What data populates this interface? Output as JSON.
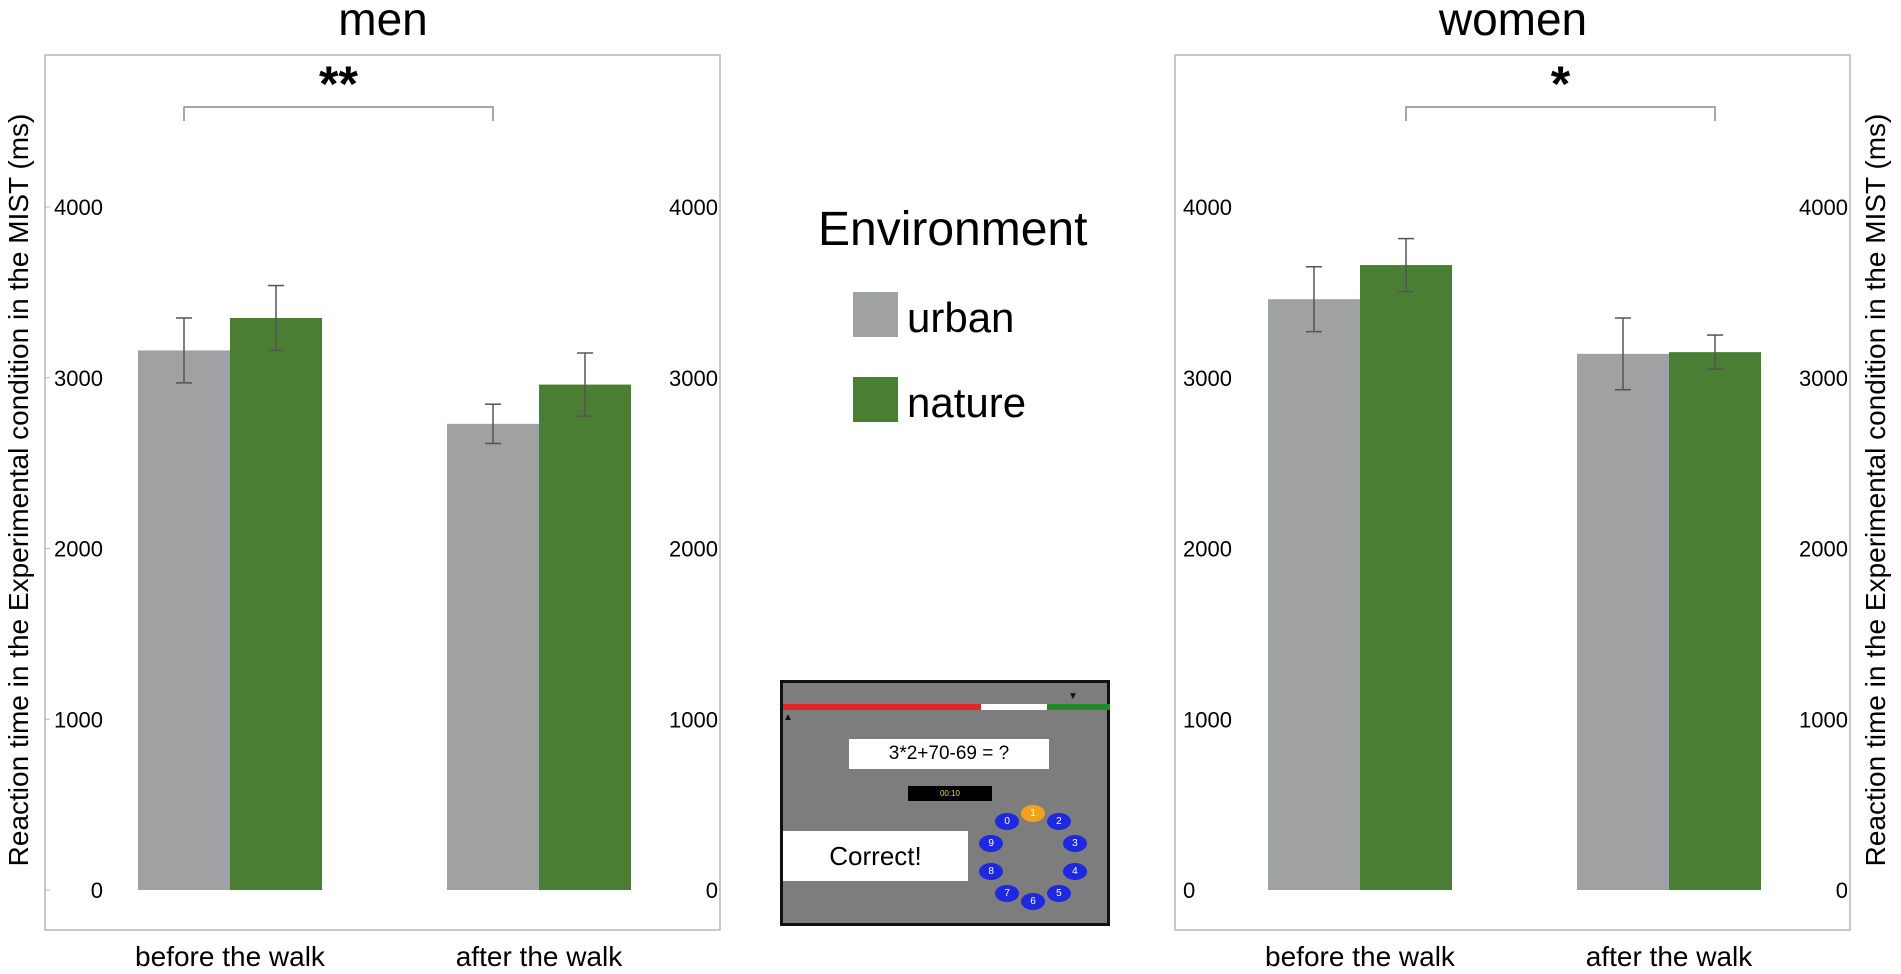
{
  "chart_data": {
    "type": "bar",
    "categories": [
      "before the walk",
      "after the walk"
    ],
    "ylabel": "Reaction time in the Experimental condition in the MIST (ms)",
    "yticks": [
      "0",
      "1000",
      "2000",
      "3000",
      "4000"
    ],
    "ylim": [
      0,
      4700
    ],
    "grid": false,
    "colors": {
      "urban": "#a0a1a3",
      "nature": "#4a7f33"
    },
    "panels": [
      {
        "title": "men",
        "significance": {
          "label": "**",
          "from": "before the walk",
          "to": "after the walk"
        },
        "series": [
          {
            "name": "urban",
            "values": [
              3160,
              2730
            ],
            "errors": [
              190,
              115
            ]
          },
          {
            "name": "nature",
            "values": [
              3350,
              2960
            ],
            "errors": [
              190,
              185
            ]
          }
        ]
      },
      {
        "title": "women",
        "significance": {
          "label": "*",
          "from": "before the walk",
          "to": "after the walk"
        },
        "series": [
          {
            "name": "urban",
            "values": [
              3460,
              3140
            ],
            "errors": [
              190,
              210
            ]
          },
          {
            "name": "nature",
            "values": [
              3660,
              3150
            ],
            "errors": [
              155,
              100
            ]
          }
        ]
      }
    ]
  },
  "legend": {
    "title": "Environment",
    "items": [
      {
        "label": "urban",
        "color": "#a0a1a3"
      },
      {
        "label": "nature",
        "color": "#4a7f33"
      }
    ]
  },
  "mist_inset": {
    "question": "3*2+70-69 = ?",
    "timer": "00:10",
    "feedback": "Correct!",
    "dial_keys": [
      "0",
      "1",
      "2",
      "3",
      "4",
      "5",
      "6",
      "7",
      "8",
      "9"
    ],
    "selected_key": "1"
  }
}
